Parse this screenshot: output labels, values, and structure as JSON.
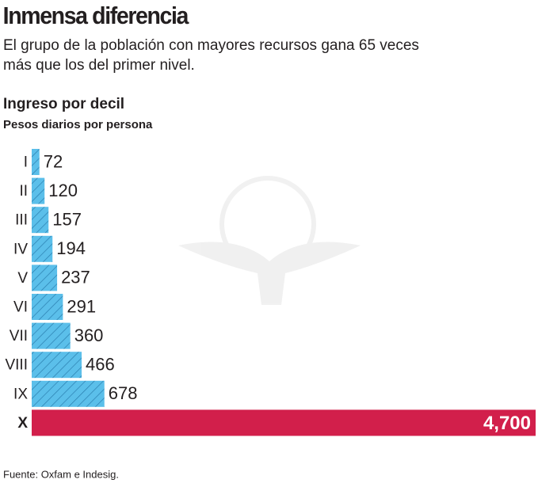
{
  "chart_data": {
    "type": "bar",
    "orientation": "horizontal",
    "title": "Inmensa diferencia",
    "subtitle": [
      "El grupo de la población con mayores recursos gana 65 veces",
      "más que los del primer nivel."
    ],
    "chart_title": "Ingreso por decil",
    "axis_label": "Pesos diarios por persona",
    "categories": [
      "I",
      "II",
      "III",
      "IV",
      "V",
      "VI",
      "VII",
      "VIII",
      "IX",
      "X"
    ],
    "values": [
      72,
      120,
      157,
      194,
      237,
      291,
      360,
      466,
      678,
      4700
    ],
    "value_labels": [
      "72",
      "120",
      "157",
      "194",
      "237",
      "291",
      "360",
      "466",
      "678",
      "4,700"
    ],
    "colors": [
      "#5bbfea",
      "#5bbfea",
      "#5bbfea",
      "#5bbfea",
      "#5bbfea",
      "#5bbfea",
      "#5bbfea",
      "#5bbfea",
      "#5bbfea",
      "#d21f4b"
    ],
    "hatched": [
      true,
      true,
      true,
      true,
      true,
      true,
      true,
      true,
      true,
      false
    ],
    "source": "Fuente: Oxfam e Indesig."
  }
}
